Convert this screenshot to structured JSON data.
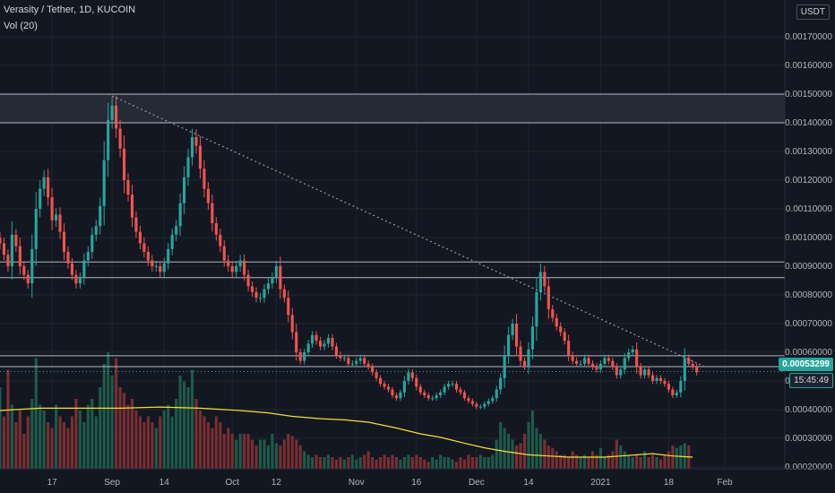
{
  "header": {
    "title": "Verasity / Tether, 1D, KUCOIN",
    "volume_label": "Vol (20)"
  },
  "price_scale": {
    "currency": "USDT",
    "last_price": "0.00053299",
    "countdown": "15:45:49"
  },
  "colors": {
    "background": "#131722",
    "up": "#26a69a",
    "down": "#ef5350",
    "grid": "#1f2430",
    "axis_text": "#b2b5be",
    "ma_line": "#f5e12e",
    "level_line": "#d1d4dc",
    "trend_line": "#9598a1"
  },
  "chart_data": {
    "type": "candlestick",
    "title": "Verasity / Tether, 1D, KUCOIN",
    "y_axis": {
      "position": "right",
      "range": [
        0.00015,
        0.0018
      ],
      "ticks": [
        "0.00020000",
        "0.00030000",
        "0.00040000",
        "0.00050000",
        "0.00060000",
        "0.00070000",
        "0.00080000",
        "0.00090000",
        "0.00100000",
        "0.00110000",
        "0.00120000",
        "0.00130000",
        "0.00140000",
        "0.00150000",
        "0.00160000",
        "0.00170000"
      ],
      "tick_values": [
        0.0002,
        0.0003,
        0.0004,
        0.0005,
        0.0006,
        0.0007,
        0.0008,
        0.0009,
        0.001,
        0.0011,
        0.0012,
        0.0013,
        0.0014,
        0.0015,
        0.0016,
        0.0017
      ]
    },
    "x_axis": {
      "range": [
        "2020-08-04",
        "2021-02-16"
      ],
      "ticks": [
        {
          "label": "17",
          "date": "2020-08-17"
        },
        {
          "label": "Sep",
          "date": "2020-09-01"
        },
        {
          "label": "14",
          "date": "2020-09-14"
        },
        {
          "label": "Oct",
          "date": "2020-10-01"
        },
        {
          "label": "12",
          "date": "2020-10-12"
        },
        {
          "label": "Nov",
          "date": "2020-11-01"
        },
        {
          "label": "16",
          "date": "2020-11-16"
        },
        {
          "label": "Dec",
          "date": "2020-12-01"
        },
        {
          "label": "14",
          "date": "2020-12-14"
        },
        {
          "label": "2021",
          "date": "2021-01-01"
        },
        {
          "label": "18",
          "date": "2021-01-18"
        },
        {
          "label": "Feb",
          "date": "2021-02-01"
        }
      ]
    },
    "grid": true,
    "first_date": "2020-08-04",
    "closes": [
      0.00098,
      0.00094,
      0.0009,
      0.00101,
      0.00097,
      0.0009,
      0.00087,
      0.00084,
      0.00096,
      0.0011,
      0.00117,
      0.00121,
      0.00114,
      0.00106,
      0.00108,
      0.00102,
      0.00095,
      0.00091,
      0.00087,
      0.00084,
      0.00086,
      0.00092,
      0.00095,
      0.00101,
      0.00104,
      0.00111,
      0.00127,
      0.00141,
      0.00146,
      0.00138,
      0.00131,
      0.0012,
      0.00115,
      0.00107,
      0.00102,
      0.00098,
      0.00095,
      0.00092,
      0.0009,
      0.0009,
      0.00088,
      0.00091,
      0.00096,
      0.00101,
      0.00104,
      0.00112,
      0.00121,
      0.00128,
      0.00135,
      0.00132,
      0.00124,
      0.00117,
      0.00112,
      0.00105,
      0.00101,
      0.00097,
      0.00092,
      0.0009,
      0.00088,
      0.0009,
      0.00092,
      0.00087,
      0.00083,
      0.00081,
      0.00079,
      0.00079,
      0.00082,
      0.00084,
      0.00086,
      0.0009,
      0.00082,
      0.00079,
      0.00073,
      0.00067,
      0.0006,
      0.00057,
      0.0006,
      0.00063,
      0.00066,
      0.00064,
      0.00062,
      0.00063,
      0.00065,
      0.00062,
      0.00059,
      0.00058,
      0.00058,
      0.00056,
      0.00056,
      0.00057,
      0.00058,
      0.00056,
      0.00055,
      0.00053,
      0.00051,
      0.00049,
      0.00048,
      0.00047,
      0.00045,
      0.00044,
      0.00046,
      0.0005,
      0.00053,
      0.00051,
      0.00048,
      0.00046,
      0.00045,
      0.00044,
      0.00044,
      0.00045,
      0.00046,
      0.00048,
      0.00049,
      0.00049,
      0.00047,
      0.00046,
      0.00044,
      0.00043,
      0.00042,
      0.00041,
      0.00041,
      0.00042,
      0.00043,
      0.00044,
      0.00047,
      0.00051,
      0.00059,
      0.00066,
      0.0007,
      0.00062,
      0.00057,
      0.00055,
      0.00061,
      0.00069,
      0.00081,
      0.00088,
      0.00083,
      0.00075,
      0.00072,
      0.00069,
      0.00067,
      0.00064,
      0.00059,
      0.00057,
      0.00056,
      0.00056,
      0.00058,
      0.00056,
      0.00055,
      0.00054,
      0.00056,
      0.00058,
      0.00057,
      0.00055,
      0.00052,
      0.00054,
      0.00058,
      0.0006,
      0.00061,
      0.00055,
      0.00052,
      0.00054,
      0.00052,
      0.0005,
      0.00051,
      0.0005,
      0.00049,
      0.00047,
      0.00045,
      0.00046,
      0.0005,
      0.00058,
      0.00056,
      0.00055,
      0.00053
    ],
    "volumes": [
      0.7,
      0.45,
      0.85,
      0.55,
      0.4,
      0.5,
      0.3,
      0.45,
      0.6,
      0.95,
      0.55,
      0.5,
      0.4,
      0.35,
      0.55,
      0.45,
      0.4,
      0.35,
      0.45,
      0.6,
      0.5,
      0.4,
      0.55,
      0.6,
      0.45,
      0.7,
      0.9,
      1.0,
      0.8,
      0.95,
      0.7,
      0.65,
      0.55,
      0.6,
      0.5,
      0.45,
      0.4,
      0.45,
      0.4,
      0.35,
      0.45,
      0.5,
      0.55,
      0.45,
      0.6,
      0.8,
      0.75,
      0.7,
      0.85,
      0.6,
      0.5,
      0.45,
      0.4,
      0.35,
      0.45,
      0.4,
      0.3,
      0.35,
      0.3,
      0.25,
      0.3,
      0.3,
      0.3,
      0.25,
      0.2,
      0.25,
      0.25,
      0.2,
      0.3,
      0.22,
      0.2,
      0.25,
      0.3,
      0.28,
      0.25,
      0.2,
      0.15,
      0.12,
      0.1,
      0.12,
      0.1,
      0.1,
      0.12,
      0.1,
      0.08,
      0.1,
      0.08,
      0.1,
      0.12,
      0.08,
      0.1,
      0.12,
      0.15,
      0.1,
      0.08,
      0.1,
      0.12,
      0.1,
      0.12,
      0.1,
      0.08,
      0.1,
      0.12,
      0.1,
      0.12,
      0.1,
      0.08,
      0.06,
      0.1,
      0.08,
      0.12,
      0.1,
      0.1,
      0.08,
      0.06,
      0.1,
      0.08,
      0.12,
      0.1,
      0.1,
      0.12,
      0.1,
      0.1,
      0.12,
      0.25,
      0.4,
      0.35,
      0.3,
      0.25,
      0.2,
      0.22,
      0.3,
      0.4,
      0.5,
      0.35,
      0.3,
      0.25,
      0.2,
      0.18,
      0.15,
      0.12,
      0.12,
      0.1,
      0.15,
      0.12,
      0.1,
      0.12,
      0.1,
      0.15,
      0.12,
      0.18,
      0.1,
      0.12,
      0.15,
      0.25,
      0.2,
      0.15,
      0.12,
      0.1,
      0.12,
      0.1,
      0.15,
      0.1,
      0.12,
      0.1,
      0.08,
      0.12,
      0.15,
      0.2,
      0.18,
      0.2,
      0.22,
      0.2
    ],
    "volume_ma": [
      0.5,
      0.52,
      0.52,
      0.52,
      0.53,
      0.52,
      0.5,
      0.48,
      0.45,
      0.43,
      0.42,
      0.4,
      0.35,
      0.3,
      0.27,
      0.22,
      0.18,
      0.15,
      0.12,
      0.11,
      0.1,
      0.1,
      0.1,
      0.11,
      0.12,
      0.13,
      0.11,
      0.1
    ],
    "volume_ma_dates": [
      "2020-08-04",
      "2020-08-14",
      "2020-08-24",
      "2020-09-03",
      "2020-09-13",
      "2020-09-23",
      "2020-10-03",
      "2020-10-10",
      "2020-10-16",
      "2020-10-23",
      "2020-10-29",
      "2020-11-04",
      "2020-11-11",
      "2020-11-17",
      "2020-11-22",
      "2020-11-28",
      "2020-12-03",
      "2020-12-08",
      "2020-12-14",
      "2020-12-19",
      "2020-12-24",
      "2020-12-28",
      "2021-01-02",
      "2021-01-06",
      "2021-01-10",
      "2021-01-14",
      "2021-01-19",
      "2021-01-24"
    ],
    "horizontal_levels": [
      0.0015,
      0.0014,
      0.000915,
      0.00086,
      0.000588,
      0.00055
    ],
    "shaded_zone": [
      0.0014,
      0.0015
    ],
    "trend_line": {
      "from": {
        "date": "2020-08-31",
        "price": 0.0015
      },
      "to": {
        "date": "2021-01-27",
        "price": 0.00055
      }
    },
    "last_price": 0.00053299
  }
}
